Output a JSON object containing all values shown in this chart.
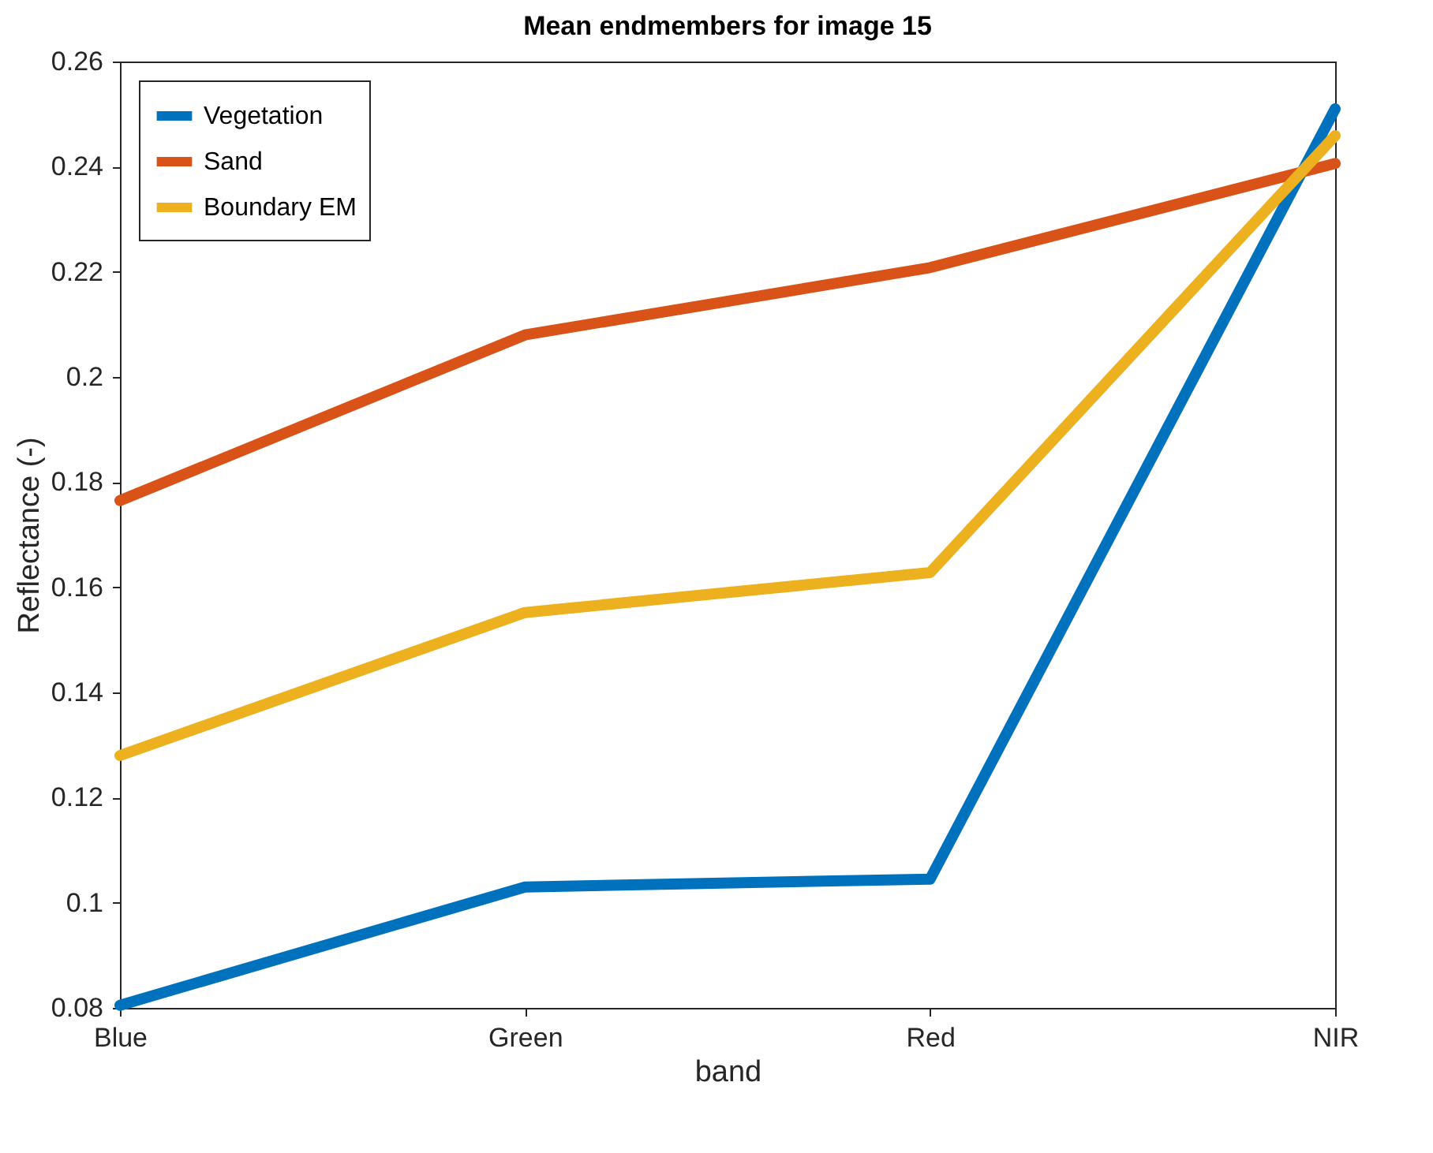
{
  "chart_data": {
    "type": "line",
    "title": "Mean endmembers for image 15",
    "xlabel": "band",
    "ylabel": "Reflectance (-)",
    "categories": [
      "Blue",
      "Green",
      "Red",
      "NIR"
    ],
    "series": [
      {
        "name": "Vegetation",
        "color": "#0072bd",
        "values": [
          0.0805,
          0.103,
          0.1045,
          0.251
        ]
      },
      {
        "name": "Sand",
        "color": "#d95319",
        "values": [
          0.1765,
          0.208,
          0.2208,
          0.2406
        ]
      },
      {
        "name": "Boundary EM",
        "color": "#edb120",
        "values": [
          0.128,
          0.1552,
          0.1628,
          0.2459
        ]
      }
    ],
    "ylim": [
      0.08,
      0.26
    ],
    "yticks": [
      0.08,
      0.1,
      0.12,
      0.14,
      0.16,
      0.18,
      0.2,
      0.22,
      0.24,
      0.26
    ],
    "grid": false,
    "legend": "top left",
    "line_style": "solid"
  }
}
